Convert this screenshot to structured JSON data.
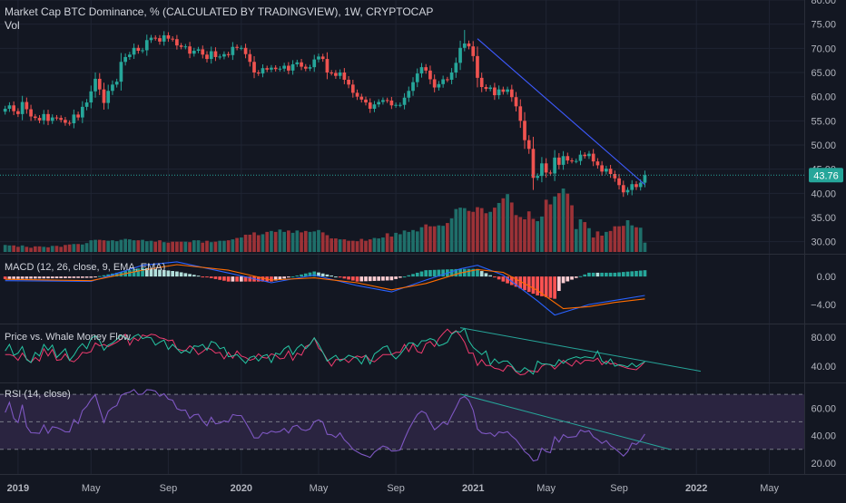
{
  "header": {
    "title": "Market Cap BTC Dominance, % (CALCULATED BY TRADINGVIEW), 1W, CRYPTOCAP",
    "subtitle": "Vol"
  },
  "colors": {
    "background": "#131722",
    "grid": "#1f2433",
    "axis_text": "#b2b5be",
    "up": "#26a69a",
    "down": "#ef5350",
    "up_volume": "#1f6f6a",
    "down_volume": "#9c3237",
    "trendline": "#3d5afe",
    "macd_line": "#2962ff",
    "signal_line": "#ff6d00",
    "macd_hist_pos_strong": "#26a69a",
    "macd_hist_pos_weak": "#b2dfdb",
    "macd_hist_neg_strong": "#ff5252",
    "macd_hist_neg_weak": "#ffcdd2",
    "whale_green": "#26c6a4",
    "whale_red": "#ef3b6e",
    "whale_trend": "#26a69a",
    "rsi_line": "#7e57c2",
    "rsi_band": "#2a2440",
    "rsi_trend": "#26a69a",
    "price_tag": "#26a69a"
  },
  "time_axis": {
    "labels": [
      {
        "text": "2019",
        "week": 3
      },
      {
        "text": "May",
        "week": 20
      },
      {
        "text": "Sep",
        "week": 38
      },
      {
        "text": "2020",
        "week": 55
      },
      {
        "text": "May",
        "week": 73
      },
      {
        "text": "Sep",
        "week": 91
      },
      {
        "text": "2021",
        "week": 109
      },
      {
        "text": "May",
        "week": 126
      },
      {
        "text": "Sep",
        "week": 143
      },
      {
        "text": "2022",
        "week": 161
      },
      {
        "text": "May",
        "week": 178
      }
    ]
  },
  "price_axis": {
    "ticks": [
      "80.00",
      "75.00",
      "70.00",
      "65.00",
      "60.00",
      "55.00",
      "50.00",
      "45.00",
      "40.00",
      "35.00",
      "30.00"
    ],
    "current_price": "43.76",
    "current_value": 43.76
  },
  "indicators": {
    "macd": {
      "label": "MACD (12, 26, close, 9, EMA, EMA)",
      "ticks": [
        "0.00",
        "−4.00"
      ]
    },
    "whale": {
      "label": "Price vs. Whale Money Flow",
      "ticks": [
        "80.00",
        "40.00"
      ]
    },
    "rsi": {
      "label": "RSI (14, close)",
      "ticks": [
        "60.00",
        "40.00",
        "20.00"
      ]
    }
  },
  "chart_data": {
    "type": "candlestick",
    "title": "Market Cap BTC Dominance, % (CALCULATED BY TRADINGVIEW), 1W, CRYPTOCAP",
    "interval": "1W",
    "x_range_weeks": [
      0,
      185
    ],
    "ylim": [
      27.5,
      80
    ],
    "candle_weeks": [
      0,
      149
    ],
    "close_series": [
      57.5,
      58.2,
      57.0,
      56.4,
      58.9,
      57.4,
      55.9,
      55.6,
      55.1,
      56.4,
      55.0,
      55.7,
      55.6,
      55.2,
      54.6,
      54.5,
      56.3,
      55.7,
      57.9,
      58.8,
      61.1,
      63.7,
      61.5,
      58.7,
      61.2,
      62.5,
      63.1,
      67.2,
      68.2,
      68.7,
      70.1,
      69.5,
      69.6,
      71.7,
      72.2,
      72.1,
      71.4,
      72.7,
      72.0,
      71.9,
      70.6,
      70.3,
      70.4,
      68.9,
      69.5,
      69.8,
      68.7,
      67.8,
      69.4,
      68.2,
      68.3,
      68.8,
      68.6,
      70.3,
      70.1,
      70.1,
      68.8,
      67.2,
      65.0,
      64.8,
      65.9,
      65.6,
      66.0,
      65.7,
      65.8,
      66.4,
      65.4,
      66.7,
      67.1,
      66.2,
      65.8,
      66.1,
      67.7,
      68.3,
      67.8,
      65.0,
      64.9,
      64.3,
      65.0,
      63.5,
      62.5,
      60.8,
      60.0,
      59.4,
      58.8,
      57.5,
      58.4,
      58.9,
      59.3,
      59.2,
      58.2,
      58.3,
      58.3,
      59.8,
      61.2,
      63.0,
      64.8,
      66.1,
      65.4,
      63.6,
      61.9,
      62.6,
      63.6,
      63.5,
      65.0,
      67.0,
      70.1,
      71.0,
      70.4,
      68.4,
      63.9,
      62.0,
      61.6,
      61.9,
      60.3,
      61.5,
      61.0,
      61.5,
      59.9,
      58.0,
      55.0,
      51.0,
      49.2,
      43.2,
      43.6,
      46.2,
      44.3,
      44.1,
      47.4,
      45.9,
      47.7,
      46.8,
      46.7,
      46.7,
      48.0,
      47.7,
      48.2,
      46.6,
      45.8,
      44.5,
      45.1,
      44.0,
      43.1,
      41.7,
      40.2,
      40.7,
      41.9,
      41.3,
      42.2,
      43.76
    ],
    "high_price": 73.8,
    "low_price": 39.6,
    "last_close": 43.76,
    "price_trendline": {
      "from": {
        "week": 110,
        "value": 72.0
      },
      "to": {
        "week": 149,
        "value": 41.8
      }
    },
    "volume_series": [
      1.5,
      1.4,
      1.4,
      1.1,
      1.4,
      1.1,
      0.9,
      1.2,
      1.2,
      1.1,
      1.0,
      1.3,
      1.3,
      1.1,
      1.5,
      1.6,
      1.7,
      1.7,
      1.6,
      1.9,
      2.5,
      2.6,
      2.6,
      2.5,
      2.4,
      2.5,
      2.3,
      2.6,
      2.8,
      2.7,
      2.5,
      2.5,
      2.6,
      2.3,
      2.4,
      2.2,
      2.5,
      2.1,
      2.0,
      2.2,
      2.2,
      2.2,
      2.2,
      2.1,
      2.5,
      2.5,
      2.0,
      2.4,
      2.1,
      2.2,
      2.4,
      2.4,
      2.5,
      2.7,
      3.0,
      3.1,
      3.7,
      3.7,
      4.2,
      3.6,
      3.8,
      4.3,
      4.5,
      4.3,
      4.8,
      4.3,
      4.6,
      4.1,
      4.6,
      4.2,
      4.5,
      4.3,
      4.4,
      4.7,
      4.2,
      3.6,
      2.9,
      2.9,
      2.7,
      2.7,
      2.4,
      2.4,
      2.3,
      2.8,
      2.4,
      2.7,
      3.0,
      2.9,
      3.1,
      4.0,
      3.3,
      4.1,
      3.8,
      4.6,
      4.3,
      4.7,
      4.4,
      5.3,
      5.9,
      5.5,
      5.5,
      5.7,
      5.6,
      6.2,
      7.2,
      9.2,
      9.5,
      9.4,
      8.8,
      8.6,
      9.6,
      9.4,
      8.3,
      8.6,
      9.5,
      10.5,
      11.5,
      12.4,
      10.6,
      7.9,
      7.5,
      7.0,
      8.7,
      7.1,
      6.6,
      7.6,
      11.2,
      10.2,
      11.9,
      12.6,
      13.6,
      12.5,
      10.0,
      4.9,
      7.0,
      6.4,
      5.1,
      3.1,
      4.4,
      3.5,
      4.3,
      4.5,
      5.5,
      5.5,
      5.6,
      6.8,
      5.7,
      5.3,
      5.2,
      2.0
    ],
    "macd": {
      "macd_line": [
        {
          "week": 0,
          "value": -0.6
        },
        {
          "week": 20,
          "value": -0.7
        },
        {
          "week": 32,
          "value": 1.6
        },
        {
          "week": 40,
          "value": 2.1
        },
        {
          "week": 52,
          "value": 0.5
        },
        {
          "week": 62,
          "value": -0.9
        },
        {
          "week": 72,
          "value": 0.2
        },
        {
          "week": 82,
          "value": -1.3
        },
        {
          "week": 90,
          "value": -2.2
        },
        {
          "week": 98,
          "value": -0.5
        },
        {
          "week": 106,
          "value": 1.1
        },
        {
          "week": 110,
          "value": 1.6
        },
        {
          "week": 116,
          "value": 0.2
        },
        {
          "week": 124,
          "value": -3.5
        },
        {
          "week": 128,
          "value": -5.5
        },
        {
          "week": 136,
          "value": -4.0
        },
        {
          "week": 142,
          "value": -3.4
        },
        {
          "week": 149,
          "value": -2.7
        }
      ],
      "signal_line": [
        {
          "week": 0,
          "value": -0.4
        },
        {
          "week": 20,
          "value": -0.6
        },
        {
          "week": 32,
          "value": 0.9
        },
        {
          "week": 40,
          "value": 1.7
        },
        {
          "week": 52,
          "value": 0.9
        },
        {
          "week": 62,
          "value": -0.5
        },
        {
          "week": 72,
          "value": -0.2
        },
        {
          "week": 82,
          "value": -0.9
        },
        {
          "week": 90,
          "value": -1.9
        },
        {
          "week": 98,
          "value": -1.0
        },
        {
          "week": 106,
          "value": 0.5
        },
        {
          "week": 110,
          "value": 1.0
        },
        {
          "week": 116,
          "value": 0.6
        },
        {
          "week": 124,
          "value": -2.0
        },
        {
          "week": 130,
          "value": -4.6
        },
        {
          "week": 136,
          "value": -4.3
        },
        {
          "week": 142,
          "value": -3.7
        },
        {
          "week": 149,
          "value": -3.2
        }
      ]
    },
    "whale_flow": {
      "green": [
        61,
        70,
        55,
        58,
        67,
        49,
        45,
        59,
        54,
        70,
        62,
        69,
        52,
        58,
        64,
        48,
        55,
        65,
        71,
        64,
        78,
        82,
        75,
        62,
        69,
        72,
        77,
        83,
        79,
        76,
        81,
        84,
        78,
        80,
        79,
        69,
        73,
        76,
        63,
        70,
        64,
        58,
        62,
        58,
        68,
        67,
        70,
        62,
        74,
        72,
        64,
        66,
        53,
        54,
        56,
        50,
        44,
        52,
        54,
        47,
        54,
        56,
        45,
        58,
        56,
        64,
        68,
        56,
        65,
        70,
        64,
        70,
        79,
        70,
        59,
        47,
        51,
        55,
        47,
        50,
        55,
        53,
        51,
        43,
        55,
        43,
        57,
        61,
        66,
        68,
        56,
        50,
        56,
        64,
        72,
        72,
        67,
        75,
        75,
        78,
        76,
        68,
        70,
        73,
        84,
        88,
        87,
        92,
        75,
        66,
        61,
        56,
        61,
        42,
        50,
        44,
        47,
        47,
        41,
        33,
        32,
        38,
        34,
        29,
        47,
        43,
        43,
        42,
        40,
        49,
        44,
        49,
        51,
        53,
        51,
        53,
        52,
        51,
        61,
        47,
        43,
        50,
        40,
        42,
        41,
        39,
        44,
        39,
        43,
        46
      ],
      "red": [
        56,
        56,
        54,
        48,
        58,
        50,
        45,
        52,
        47,
        64,
        54,
        63,
        48,
        49,
        57,
        48,
        46,
        51,
        59,
        58,
        60,
        72,
        68,
        70,
        67,
        70,
        73,
        77,
        84,
        69,
        79,
        75,
        83,
        81,
        84,
        83,
        79,
        78,
        75,
        76,
        64,
        62,
        61,
        68,
        64,
        56,
        60,
        65,
        63,
        58,
        59,
        50,
        59,
        51,
        61,
        54,
        52,
        48,
        50,
        57,
        52,
        51,
        57,
        55,
        50,
        51,
        61,
        48,
        58,
        55,
        67,
        70,
        79,
        65,
        59,
        49,
        40,
        49,
        49,
        50,
        45,
        51,
        54,
        52,
        55,
        48,
        46,
        51,
        56,
        56,
        56,
        59,
        59,
        70,
        60,
        71,
        60,
        58,
        71,
        74,
        67,
        78,
        85,
        91,
        85,
        89,
        82,
        73,
        58,
        58,
        41,
        49,
        41,
        41,
        37,
        36,
        33,
        41,
        39,
        32,
        28,
        29,
        34,
        33,
        32,
        40,
        43,
        42,
        36,
        42,
        48,
        44,
        40,
        48,
        43,
        48,
        48,
        47,
        51,
        42,
        47,
        43,
        44,
        41,
        39,
        37,
        36,
        35,
        40,
        46
      ],
      "trendline": {
        "from": {
          "week": 106,
          "value": 93.0
        },
        "to": {
          "week": 162,
          "value": 33.0
        }
      }
    },
    "rsi": {
      "values": [
        56.8,
        64.2,
        52.5,
        49.5,
        62.4,
        46.5,
        42.0,
        41.9,
        41.6,
        47.8,
        41.7,
        46.4,
        45.8,
        44.5,
        42.7,
        42.6,
        51.6,
        48.7,
        58.2,
        61.3,
        66.3,
        69.7,
        59.3,
        49.5,
        57.7,
        60.3,
        61.8,
        69.3,
        70.8,
        71.5,
        73.5,
        69.9,
        70.2,
        73.4,
        73.2,
        72.4,
        68.6,
        70.5,
        66.5,
        65.7,
        59.6,
        58.3,
        58.6,
        52.5,
        55.1,
        55.5,
        50.5,
        47.1,
        53.3,
        48.5,
        49.0,
        50.7,
        49.8,
        55.3,
        54.6,
        54.6,
        49.4,
        44.1,
        38.3,
        38.3,
        42.2,
        41.4,
        43.2,
        42.4,
        42.9,
        45.2,
        41.9,
        46.6,
        47.5,
        44.4,
        43.7,
        44.8,
        50.0,
        51.4,
        49.7,
        40.9,
        40.6,
        38.6,
        41.9,
        36.9,
        34.0,
        30.0,
        28.2,
        26.4,
        25.3,
        24.1,
        28.0,
        30.3,
        32.4,
        31.4,
        28.7,
        28.9,
        29.5,
        37.4,
        44.4,
        50.0,
        55.3,
        57.8,
        56.2,
        49.8,
        44.2,
        46.8,
        49.8,
        48.0,
        54.4,
        60.3,
        66.9,
        68.5,
        65.6,
        58.6,
        44.8,
        41.9,
        41.3,
        41.9,
        39.4,
        42.7,
        41.9,
        42.9,
        39.6,
        37.0,
        32.7,
        28.3,
        25.9,
        21.5,
        22.3,
        30.8,
        28.4,
        27.6,
        39.1,
        35.2,
        40.7,
        38.6,
        38.9,
        39.3,
        44.1,
        42.7,
        43.5,
        39.0,
        37.0,
        34.3,
        36.3,
        32.6,
        30.5,
        27.9,
        25.1,
        28.3,
        34.5,
        33.5,
        36.5,
        41.1
      ],
      "bands": [
        70,
        50,
        30
      ],
      "trendline": {
        "from": {
          "week": 106,
          "value": 70.2
        },
        "to": {
          "week": 155,
          "value": 29.8
        }
      }
    }
  }
}
